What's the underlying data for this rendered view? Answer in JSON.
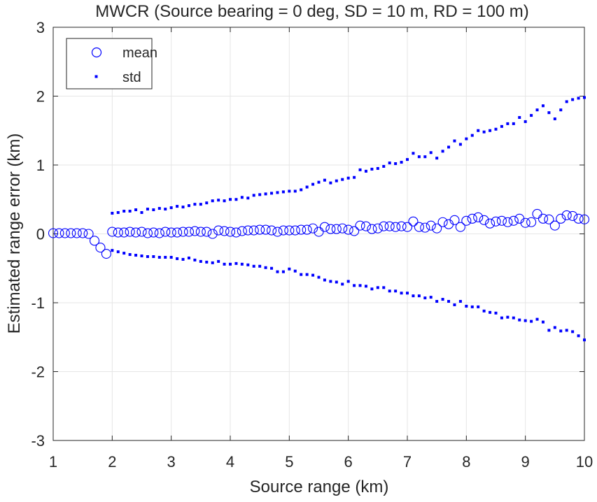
{
  "chart_data": {
    "type": "scatter",
    "title": "MWCR (Source bearing = 0 deg, SD = 10 m, RD = 100 m)",
    "xlabel": "Source range (km)",
    "ylabel": "Estimated range error (km)",
    "xlim": [
      1,
      10
    ],
    "ylim": [
      -3,
      3
    ],
    "xticks": [
      1,
      2,
      3,
      4,
      5,
      6,
      7,
      8,
      9,
      10
    ],
    "yticks": [
      -3,
      -2,
      -1,
      0,
      1,
      2,
      3
    ],
    "xtick_labels": [
      "1",
      "2",
      "3",
      "4",
      "5",
      "6",
      "7",
      "8",
      "9",
      "10"
    ],
    "ytick_labels": [
      "-3",
      "-2",
      "-1",
      "0",
      "1",
      "2",
      "3"
    ],
    "grid": true,
    "legend_position": "top-left",
    "colors": {
      "series": "#0000ff",
      "grid": "#e6e6e6",
      "axis": "#262626"
    },
    "series": [
      {
        "name": "mean",
        "marker": "open-circle",
        "x": [
          1.0,
          1.1,
          1.2,
          1.3,
          1.4,
          1.5,
          1.6,
          1.7,
          1.8,
          1.9,
          2.0,
          2.1,
          2.2,
          2.3,
          2.4,
          2.5,
          2.6,
          2.7,
          2.8,
          2.9,
          3.0,
          3.1,
          3.2,
          3.3,
          3.4,
          3.5,
          3.6,
          3.7,
          3.8,
          3.9,
          4.0,
          4.1,
          4.2,
          4.3,
          4.4,
          4.5,
          4.6,
          4.7,
          4.8,
          4.9,
          5.0,
          5.1,
          5.2,
          5.3,
          5.4,
          5.5,
          5.6,
          5.7,
          5.8,
          5.9,
          6.0,
          6.1,
          6.2,
          6.3,
          6.4,
          6.5,
          6.6,
          6.7,
          6.8,
          6.9,
          7.0,
          7.1,
          7.2,
          7.3,
          7.4,
          7.5,
          7.6,
          7.7,
          7.8,
          7.9,
          8.0,
          8.1,
          8.2,
          8.3,
          8.4,
          8.5,
          8.6,
          8.7,
          8.8,
          8.9,
          9.0,
          9.1,
          9.2,
          9.3,
          9.4,
          9.5,
          9.6,
          9.7,
          9.8,
          9.9,
          10.0
        ],
        "y": [
          0.01,
          0.01,
          0.01,
          0.01,
          0.01,
          0.01,
          0.0,
          -0.1,
          -0.2,
          -0.29,
          0.03,
          0.02,
          0.02,
          0.03,
          0.02,
          0.03,
          0.01,
          0.02,
          0.01,
          0.03,
          0.02,
          0.02,
          0.03,
          0.03,
          0.04,
          0.03,
          0.03,
          0.0,
          0.05,
          0.04,
          0.03,
          0.02,
          0.04,
          0.05,
          0.05,
          0.06,
          0.06,
          0.05,
          0.03,
          0.05,
          0.05,
          0.05,
          0.06,
          0.06,
          0.08,
          0.03,
          0.1,
          0.07,
          0.07,
          0.08,
          0.06,
          0.04,
          0.12,
          0.11,
          0.07,
          0.08,
          0.11,
          0.11,
          0.1,
          0.11,
          0.1,
          0.18,
          0.1,
          0.09,
          0.12,
          0.08,
          0.17,
          0.14,
          0.2,
          0.1,
          0.19,
          0.22,
          0.24,
          0.2,
          0.15,
          0.18,
          0.19,
          0.17,
          0.19,
          0.22,
          0.16,
          0.17,
          0.29,
          0.22,
          0.21,
          0.12,
          0.22,
          0.27,
          0.26,
          0.22,
          0.21
        ]
      },
      {
        "name": "std",
        "marker": "dot",
        "x": [
          2.0,
          2.1,
          2.2,
          2.3,
          2.4,
          2.5,
          2.6,
          2.7,
          2.8,
          2.9,
          3.0,
          3.1,
          3.2,
          3.3,
          3.4,
          3.5,
          3.6,
          3.7,
          3.8,
          3.9,
          4.0,
          4.1,
          4.2,
          4.3,
          4.4,
          4.5,
          4.6,
          4.7,
          4.8,
          4.9,
          5.0,
          5.1,
          5.2,
          5.3,
          5.4,
          5.5,
          5.6,
          5.7,
          5.8,
          5.9,
          6.0,
          6.1,
          6.2,
          6.3,
          6.4,
          6.5,
          6.6,
          6.7,
          6.8,
          6.9,
          7.0,
          7.1,
          7.2,
          7.3,
          7.4,
          7.5,
          7.6,
          7.7,
          7.8,
          7.9,
          8.0,
          8.1,
          8.2,
          8.3,
          8.4,
          8.5,
          8.6,
          8.7,
          8.8,
          8.9,
          9.0,
          9.1,
          9.2,
          9.3,
          9.4,
          9.5,
          9.6,
          9.7,
          9.8,
          9.9,
          10.0
        ],
        "upper": [
          0.3,
          0.31,
          0.33,
          0.33,
          0.35,
          0.31,
          0.36,
          0.35,
          0.37,
          0.36,
          0.38,
          0.4,
          0.39,
          0.41,
          0.43,
          0.43,
          0.45,
          0.48,
          0.49,
          0.48,
          0.5,
          0.5,
          0.53,
          0.52,
          0.56,
          0.57,
          0.58,
          0.59,
          0.6,
          0.61,
          0.62,
          0.62,
          0.64,
          0.68,
          0.72,
          0.75,
          0.78,
          0.74,
          0.77,
          0.79,
          0.81,
          0.82,
          0.93,
          0.91,
          0.94,
          0.95,
          0.98,
          1.03,
          1.02,
          1.04,
          1.08,
          1.17,
          1.12,
          1.12,
          1.18,
          1.1,
          1.2,
          1.26,
          1.35,
          1.3,
          1.38,
          1.43,
          1.5,
          1.48,
          1.5,
          1.52,
          1.56,
          1.6,
          1.6,
          1.69,
          1.63,
          1.72,
          1.8,
          1.86,
          1.76,
          1.67,
          1.8,
          1.92,
          1.95,
          1.97,
          1.98
        ],
        "lower": [
          -0.24,
          -0.26,
          -0.28,
          -0.3,
          -0.31,
          -0.32,
          -0.33,
          -0.33,
          -0.34,
          -0.34,
          -0.34,
          -0.36,
          -0.37,
          -0.35,
          -0.38,
          -0.4,
          -0.41,
          -0.42,
          -0.4,
          -0.44,
          -0.44,
          -0.43,
          -0.44,
          -0.45,
          -0.47,
          -0.47,
          -0.49,
          -0.5,
          -0.55,
          -0.55,
          -0.51,
          -0.54,
          -0.59,
          -0.59,
          -0.6,
          -0.63,
          -0.67,
          -0.69,
          -0.7,
          -0.73,
          -0.69,
          -0.75,
          -0.75,
          -0.76,
          -0.8,
          -0.78,
          -0.78,
          -0.83,
          -0.83,
          -0.86,
          -0.86,
          -0.9,
          -0.9,
          -0.93,
          -0.92,
          -0.98,
          -0.95,
          -0.98,
          -1.03,
          -0.98,
          -1.05,
          -1.06,
          -1.06,
          -1.12,
          -1.14,
          -1.15,
          -1.22,
          -1.21,
          -1.22,
          -1.25,
          -1.26,
          -1.27,
          -1.24,
          -1.28,
          -1.4,
          -1.36,
          -1.41,
          -1.4,
          -1.42,
          -1.48,
          -1.54
        ]
      }
    ]
  }
}
